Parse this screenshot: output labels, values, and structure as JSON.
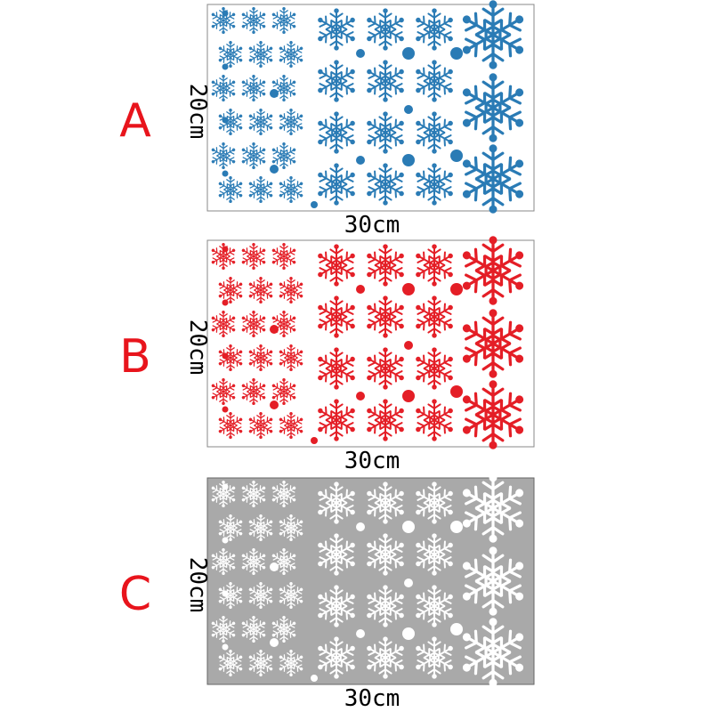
{
  "panels": [
    {
      "letter": "A",
      "height_label": "20cm",
      "width_label": "30cm"
    },
    {
      "letter": "B",
      "height_label": "20cm",
      "width_label": "30cm"
    },
    {
      "letter": "C",
      "height_label": "20cm",
      "width_label": "30cm"
    }
  ]
}
